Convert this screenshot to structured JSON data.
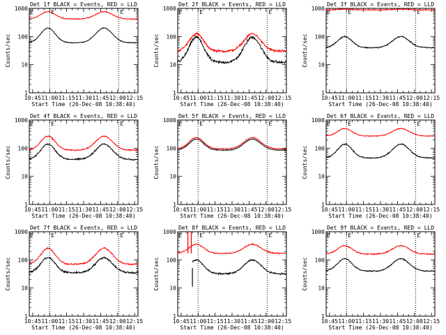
{
  "figure": {
    "colors": {
      "events": "#000000",
      "lld": "#ff0000",
      "axes": "#000000"
    }
  },
  "chart_data": [
    {
      "type": "line",
      "title": "Det 1f BLACK = Events, RED = LLD",
      "xlabel": "Start Time (26-Dec-08 10:38:40)",
      "ylabel": "Counts/sec",
      "y_scale": "log",
      "ylim": [
        1,
        1000
      ],
      "x_tick_labels": [
        "10:45",
        "11:00",
        "11:15",
        "11:30",
        "11:45",
        "12:00",
        "12:15"
      ],
      "x_tick_minutes": [
        45,
        60,
        75,
        90,
        105,
        120,
        135
      ],
      "xlim_minutes": [
        42,
        138
      ],
      "y_tick_labels": [
        "1",
        "10",
        "100",
        "1000"
      ],
      "y_tick_values": [
        1,
        10,
        100,
        1000
      ],
      "vlines_minutes": [
        60,
        121
      ],
      "segment_markers": [
        "E",
        "E"
      ],
      "series": [
        {
          "key": "events",
          "color": "#000000",
          "base": 60,
          "peak": 200,
          "noise": 0.02
        },
        {
          "key": "lld",
          "color": "#ff0000",
          "base": 420,
          "peak": 760,
          "noise": 0.02
        }
      ]
    },
    {
      "type": "line",
      "title": "Det 2f BLACK = Events, RED = LLD",
      "xlabel": "Start Time (26-Dec-08 10:38:40)",
      "ylabel": "Counts/sec",
      "y_scale": "log",
      "ylim": [
        1,
        1000
      ],
      "x_tick_labels": [
        "10:45",
        "11:00",
        "11:15",
        "11:30",
        "11:45",
        "12:00",
        "12:15"
      ],
      "x_tick_minutes": [
        45,
        60,
        75,
        90,
        105,
        120,
        135
      ],
      "xlim_minutes": [
        42,
        138
      ],
      "y_tick_labels": [
        "1",
        "10",
        "100",
        "1000"
      ],
      "y_tick_values": [
        1,
        10,
        100,
        1000
      ],
      "vlines_minutes": [
        60,
        121
      ],
      "segment_markers": [
        "E",
        "E"
      ],
      "series": [
        {
          "key": "events",
          "color": "#000000",
          "base": 12,
          "peak": 95,
          "noise": 0.08
        },
        {
          "key": "lld",
          "color": "#ff0000",
          "base": 30,
          "peak": 125,
          "noise": 0.06
        }
      ]
    },
    {
      "type": "line",
      "title": "Det 3f BLACK = Events, RED = LLD",
      "xlabel": "Start Time (26-Dec-08 10:38:40)",
      "ylabel": "Counts/sec",
      "y_scale": "log",
      "ylim": [
        1,
        1000
      ],
      "x_tick_labels": [
        "10:45",
        "11:00",
        "11:15",
        "11:30",
        "11:45",
        "12:00",
        "12:15"
      ],
      "x_tick_minutes": [
        45,
        60,
        75,
        90,
        105,
        120,
        135
      ],
      "xlim_minutes": [
        42,
        138
      ],
      "y_tick_labels": [
        "1",
        "10",
        "100",
        "1000"
      ],
      "y_tick_values": [
        1,
        10,
        100,
        1000
      ],
      "vlines_minutes": [
        60,
        121
      ],
      "segment_markers": [
        "E",
        "E"
      ],
      "series": [
        {
          "key": "events",
          "color": "#000000",
          "base": 40,
          "peak": 100,
          "noise": 0.03
        },
        {
          "key": "lld",
          "color": "#ff0000",
          "base": 880,
          "peak": 940,
          "noise": 0.02
        }
      ]
    },
    {
      "type": "line",
      "title": "Det 4f BLACK = Events, RED = LLD",
      "xlabel": "Start Time (26-Dec-08 10:38:40)",
      "ylabel": "Counts/sec",
      "y_scale": "log",
      "ylim": [
        1,
        1000
      ],
      "x_tick_labels": [
        "10:45",
        "11:00",
        "11:15",
        "11:30",
        "11:45",
        "12:00",
        "12:15"
      ],
      "x_tick_minutes": [
        45,
        60,
        75,
        90,
        105,
        120,
        135
      ],
      "xlim_minutes": [
        42,
        138
      ],
      "y_tick_labels": [
        "1",
        "10",
        "100",
        "1000"
      ],
      "y_tick_values": [
        1,
        10,
        100,
        1000
      ],
      "vlines_minutes": [
        60,
        121
      ],
      "segment_markers": [
        "E",
        "E"
      ],
      "series": [
        {
          "key": "events",
          "color": "#000000",
          "base": 40,
          "peak": 140,
          "noise": 0.04
        },
        {
          "key": "lld",
          "color": "#ff0000",
          "base": 85,
          "peak": 270,
          "noise": 0.03
        }
      ]
    },
    {
      "type": "line",
      "title": "Det 5f BLACK = Events, RED = LLD",
      "xlabel": "Start Time (26-Dec-08 10:38:40)",
      "ylabel": "Counts/sec",
      "y_scale": "log",
      "ylim": [
        1,
        1000
      ],
      "x_tick_labels": [
        "10:45",
        "11:00",
        "11:15",
        "11:30",
        "11:45",
        "12:00",
        "12:15"
      ],
      "x_tick_minutes": [
        45,
        60,
        75,
        90,
        105,
        120,
        135
      ],
      "xlim_minutes": [
        42,
        138
      ],
      "y_tick_labels": [
        "1",
        "10",
        "100",
        "1000"
      ],
      "y_tick_values": [
        1,
        10,
        100,
        1000
      ],
      "vlines_minutes": [
        60,
        121
      ],
      "segment_markers": [
        "E",
        "E"
      ],
      "series": [
        {
          "key": "events",
          "color": "#000000",
          "base": 85,
          "peak": 210,
          "noise": 0.02
        },
        {
          "key": "lld",
          "color": "#ff0000",
          "base": 95,
          "peak": 240,
          "noise": 0.02
        }
      ]
    },
    {
      "type": "line",
      "title": "Det 6f BLACK = Events, RED = LLD",
      "xlabel": "Start Time (26-Dec-08 10:38:40)",
      "ylabel": "Counts/sec",
      "y_scale": "log",
      "ylim": [
        1,
        1000
      ],
      "x_tick_labels": [
        "10:45",
        "11:00",
        "11:15",
        "11:30",
        "11:45",
        "12:00",
        "12:15"
      ],
      "x_tick_minutes": [
        45,
        60,
        75,
        90,
        105,
        120,
        135
      ],
      "xlim_minutes": [
        42,
        138
      ],
      "y_tick_labels": [
        "1",
        "10",
        "100",
        "1000"
      ],
      "y_tick_values": [
        1,
        10,
        100,
        1000
      ],
      "vlines_minutes": [
        60,
        121
      ],
      "segment_markers": [
        "E",
        "E"
      ],
      "series": [
        {
          "key": "events",
          "color": "#000000",
          "base": 45,
          "peak": 140,
          "noise": 0.03
        },
        {
          "key": "lld",
          "color": "#ff0000",
          "base": 270,
          "peak": 500,
          "noise": 0.02
        }
      ]
    },
    {
      "type": "line",
      "title": "Det 7f BLACK = Events, RED = LLD",
      "xlabel": "Start Time (26-Dec-08 10:38:40)",
      "ylabel": "Counts/sec",
      "y_scale": "log",
      "ylim": [
        1,
        1000
      ],
      "x_tick_labels": [
        "10:45",
        "11:00",
        "11:15",
        "11:30",
        "11:45",
        "12:00",
        "12:15"
      ],
      "x_tick_minutes": [
        45,
        60,
        75,
        90,
        105,
        120,
        135
      ],
      "xlim_minutes": [
        42,
        138
      ],
      "y_tick_labels": [
        "1",
        "10",
        "100",
        "1000"
      ],
      "y_tick_values": [
        1,
        10,
        100,
        1000
      ],
      "vlines_minutes": [
        60,
        121
      ],
      "segment_markers": [
        "E",
        "E"
      ],
      "series": [
        {
          "key": "events",
          "color": "#000000",
          "base": 35,
          "peak": 120,
          "noise": 0.05
        },
        {
          "key": "lld",
          "color": "#ff0000",
          "base": 70,
          "peak": 260,
          "noise": 0.04
        }
      ]
    },
    {
      "type": "line",
      "title": "Det 8f BLACK = Events, RED = LLD",
      "xlabel": "Start Time (26-Dec-08 10:38:40)",
      "ylabel": "Counts/sec",
      "y_scale": "log",
      "ylim": [
        1,
        1000
      ],
      "x_tick_labels": [
        "10:45",
        "11:00",
        "11:15",
        "11:30",
        "11:45",
        "12:00",
        "12:15"
      ],
      "x_tick_minutes": [
        45,
        60,
        75,
        90,
        105,
        120,
        135
      ],
      "xlim_minutes": [
        42,
        138
      ],
      "y_tick_labels": [
        "1",
        "10",
        "100",
        "1000"
      ],
      "y_tick_values": [
        1,
        10,
        100,
        1000
      ],
      "vlines_minutes": [
        60,
        121
      ],
      "segment_markers": [
        "E",
        "E"
      ],
      "series": [
        {
          "key": "events",
          "color": "#000000",
          "base": 32,
          "peak": 100,
          "noise": 0.04,
          "start_minute": 55
        },
        {
          "key": "lld",
          "color": "#ff0000",
          "base": 170,
          "peak": 360,
          "noise": 0.03
        }
      ],
      "spikes_minutes": [
        51,
        54
      ]
    },
    {
      "type": "line",
      "title": "Det 9f BLACK = Events, RED = LLD",
      "xlabel": "Start Time (26-Dec-08 10:38:40)",
      "ylabel": "Counts/sec",
      "y_scale": "log",
      "ylim": [
        1,
        1000
      ],
      "x_tick_labels": [
        "10:45",
        "11:00",
        "11:15",
        "11:30",
        "11:45",
        "12:00",
        "12:15"
      ],
      "x_tick_minutes": [
        45,
        60,
        75,
        90,
        105,
        120,
        135
      ],
      "xlim_minutes": [
        42,
        138
      ],
      "y_tick_labels": [
        "1",
        "10",
        "100",
        "1000"
      ],
      "y_tick_values": [
        1,
        10,
        100,
        1000
      ],
      "vlines_minutes": [
        60,
        121
      ],
      "segment_markers": [
        "E",
        "E"
      ],
      "series": [
        {
          "key": "events",
          "color": "#000000",
          "base": 40,
          "peak": 110,
          "noise": 0.03
        },
        {
          "key": "lld",
          "color": "#ff0000",
          "base": 160,
          "peak": 320,
          "noise": 0.03
        }
      ]
    }
  ]
}
